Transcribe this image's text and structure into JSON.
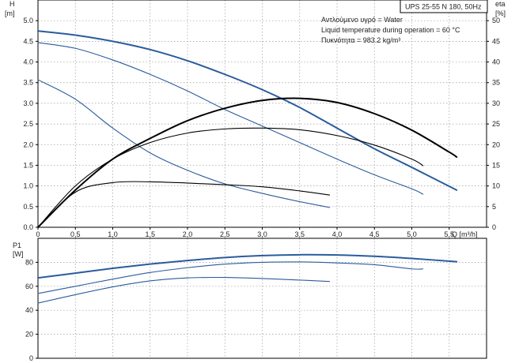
{
  "title_box": "UPS 25-55 N 180, 50Hz",
  "info_lines": [
    "Αντλούμενο υγρό = Water",
    "Liquid temperature during operation = 60 °C",
    "Πυκνότητα = 983.2 kg/m³"
  ],
  "colors": {
    "blue": "#2a5c9c",
    "black": "#000000",
    "grid": "#9a9a9a"
  },
  "chart_data": [
    {
      "type": "line",
      "panel": "head-efficiency",
      "xlabel": "Q [m³/h]",
      "ylabel_left": [
        "H",
        "[m]"
      ],
      "ylabel_right": [
        "eta",
        "[%]"
      ],
      "xlim": [
        0,
        6
      ],
      "ylim": [
        0,
        5.5
      ],
      "ylim_right": [
        0,
        55
      ],
      "xticks": [
        0,
        0.5,
        1,
        1.5,
        2,
        2.5,
        3,
        3.5,
        4,
        4.5,
        5,
        5.5
      ],
      "xtick_labels": [
        "0",
        "0,5",
        "1,0",
        "1,5",
        "2,0",
        "2,5",
        "3,0",
        "3,5",
        "4,0",
        "4,5",
        "5,0",
        "5,5"
      ],
      "yticks": [
        0,
        0.5,
        1,
        1.5,
        2,
        2.5,
        3,
        3.5,
        4,
        4.5,
        5
      ],
      "ytick_labels": [
        "0.0",
        "0.5",
        "1.0",
        "1.5",
        "2.0",
        "2.5",
        "3.0",
        "3.5",
        "4.0",
        "4.5",
        "5.0"
      ],
      "yticks_right": [
        0,
        5,
        10,
        15,
        20,
        25,
        30,
        35,
        40,
        45,
        50
      ],
      "ytick_labels_right": [
        "0",
        "5",
        "10",
        "15",
        "20",
        "25",
        "30",
        "35",
        "40",
        "45",
        "50"
      ],
      "grid": true,
      "series": [
        {
          "kind": "head",
          "axis": "left",
          "color": "#2a5c9c",
          "width": 2,
          "x": [
            0,
            0.5,
            1,
            1.5,
            2,
            2.5,
            3,
            3.5,
            4,
            4.5,
            5,
            5.6
          ],
          "y": [
            4.75,
            4.65,
            4.5,
            4.3,
            4.03,
            3.7,
            3.33,
            2.9,
            2.4,
            1.9,
            1.45,
            0.9
          ]
        },
        {
          "kind": "head",
          "axis": "left",
          "color": "#2a5c9c",
          "width": 1.1,
          "x": [
            0,
            0.5,
            1,
            1.5,
            2,
            2.5,
            3,
            3.5,
            4,
            4.5,
            5,
            5.15
          ],
          "y": [
            4.47,
            4.33,
            4.05,
            3.7,
            3.3,
            2.85,
            2.45,
            2.05,
            1.65,
            1.27,
            0.93,
            0.8
          ]
        },
        {
          "kind": "head",
          "axis": "left",
          "color": "#2a5c9c",
          "width": 1.1,
          "x": [
            0,
            0.5,
            1,
            1.5,
            2,
            2.5,
            3,
            3.5,
            3.9
          ],
          "y": [
            3.57,
            3.1,
            2.4,
            1.8,
            1.38,
            1.05,
            0.82,
            0.62,
            0.48
          ]
        },
        {
          "kind": "efficiency",
          "axis": "right",
          "color": "#000000",
          "width": 2,
          "x": [
            0,
            0.5,
            1,
            1.5,
            2,
            2.5,
            3,
            3.5,
            4,
            4.5,
            5,
            5.5,
            5.6
          ],
          "y": [
            0,
            9,
            16.5,
            21.5,
            25.8,
            28.8,
            30.7,
            31.2,
            30.2,
            27.5,
            23.5,
            18.2,
            17
          ]
        },
        {
          "kind": "efficiency",
          "axis": "right",
          "color": "#000000",
          "width": 1.1,
          "x": [
            0,
            0.5,
            1,
            1.5,
            2,
            2.5,
            3,
            3.5,
            4,
            4.5,
            5,
            5.15
          ],
          "y": [
            0,
            10,
            16.5,
            20.5,
            22.8,
            23.8,
            24,
            23.6,
            22.2,
            19.9,
            16.5,
            14.9
          ]
        },
        {
          "kind": "efficiency",
          "axis": "right",
          "color": "#000000",
          "width": 1.1,
          "x": [
            0,
            0.5,
            1,
            1.5,
            2,
            2.5,
            3,
            3.5,
            3.9
          ],
          "y": [
            0,
            8.5,
            10.8,
            11,
            10.7,
            10.3,
            9.8,
            8.8,
            7.8
          ]
        }
      ]
    },
    {
      "type": "line",
      "panel": "power",
      "ylabel": [
        "P1",
        "[W]"
      ],
      "xlim": [
        0,
        6
      ],
      "ylim": [
        0,
        100
      ],
      "yticks": [
        0,
        20,
        40,
        60,
        80
      ],
      "ytick_labels": [
        "0",
        "20",
        "40",
        "60",
        "80"
      ],
      "grid": true,
      "series": [
        {
          "color": "#2a5c9c",
          "width": 2,
          "x": [
            0,
            0.5,
            1,
            1.5,
            2,
            2.5,
            3,
            3.5,
            4,
            4.5,
            5,
            5.6
          ],
          "y": [
            67,
            71,
            75,
            78.5,
            81.5,
            84,
            85.6,
            86.3,
            86.1,
            85,
            83.2,
            80.5
          ]
        },
        {
          "color": "#2a5c9c",
          "width": 1.1,
          "x": [
            0,
            0.5,
            1,
            1.5,
            2,
            2.5,
            3,
            3.5,
            4,
            4.5,
            5,
            5.15
          ],
          "y": [
            54,
            60,
            66,
            71.5,
            75.5,
            78.5,
            80,
            80.3,
            79.5,
            78,
            74.5,
            74.5
          ]
        },
        {
          "color": "#2a5c9c",
          "width": 1.1,
          "x": [
            0,
            0.5,
            1,
            1.5,
            2,
            2.5,
            3,
            3.5,
            3.9
          ],
          "y": [
            46,
            53,
            59.5,
            64.5,
            67,
            67.4,
            66.5,
            65.2,
            64
          ]
        }
      ]
    }
  ]
}
